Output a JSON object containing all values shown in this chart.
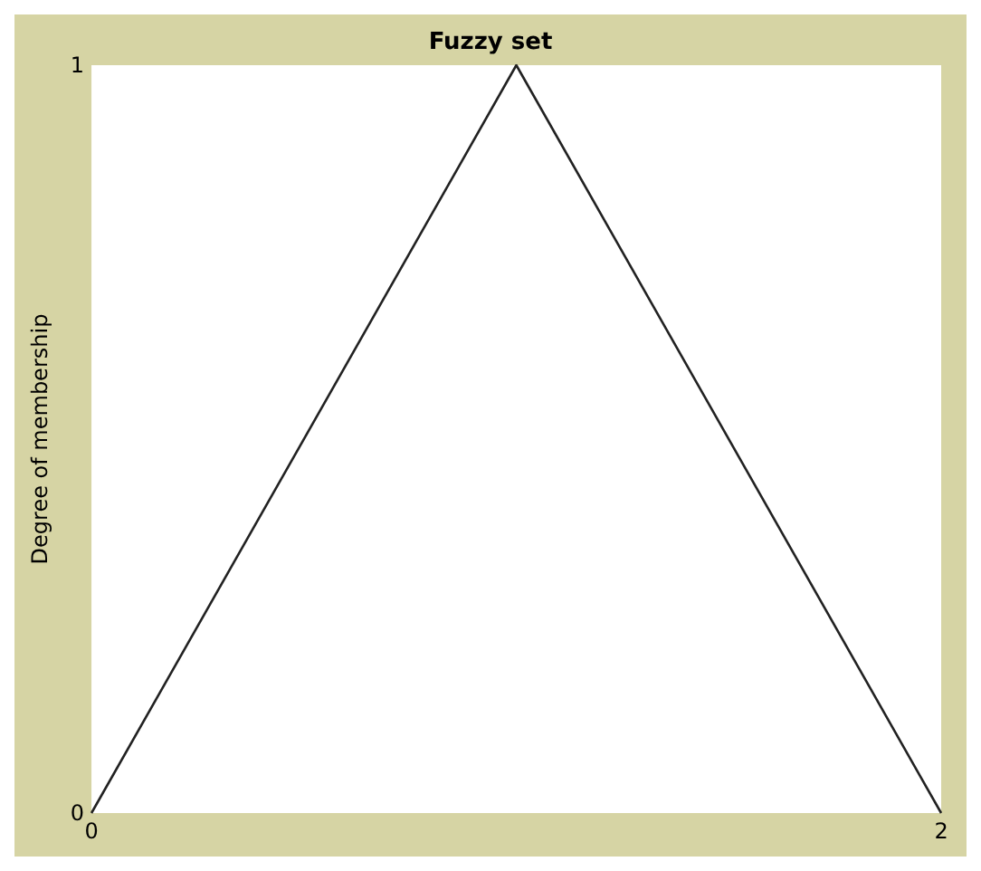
{
  "chart_data": {
    "type": "line",
    "title": "Fuzzy set",
    "ylabel": "Degree of membership",
    "x": [
      0,
      1,
      2
    ],
    "series": [
      {
        "color": "#222222",
        "values": [
          0,
          1,
          0
        ]
      }
    ],
    "xlim": [
      0,
      2
    ],
    "ylim": [
      0,
      1
    ],
    "xticks": [
      0,
      2
    ],
    "yticks": [
      0,
      1
    ],
    "grid": false,
    "marker": "none",
    "line_style": "solid"
  }
}
